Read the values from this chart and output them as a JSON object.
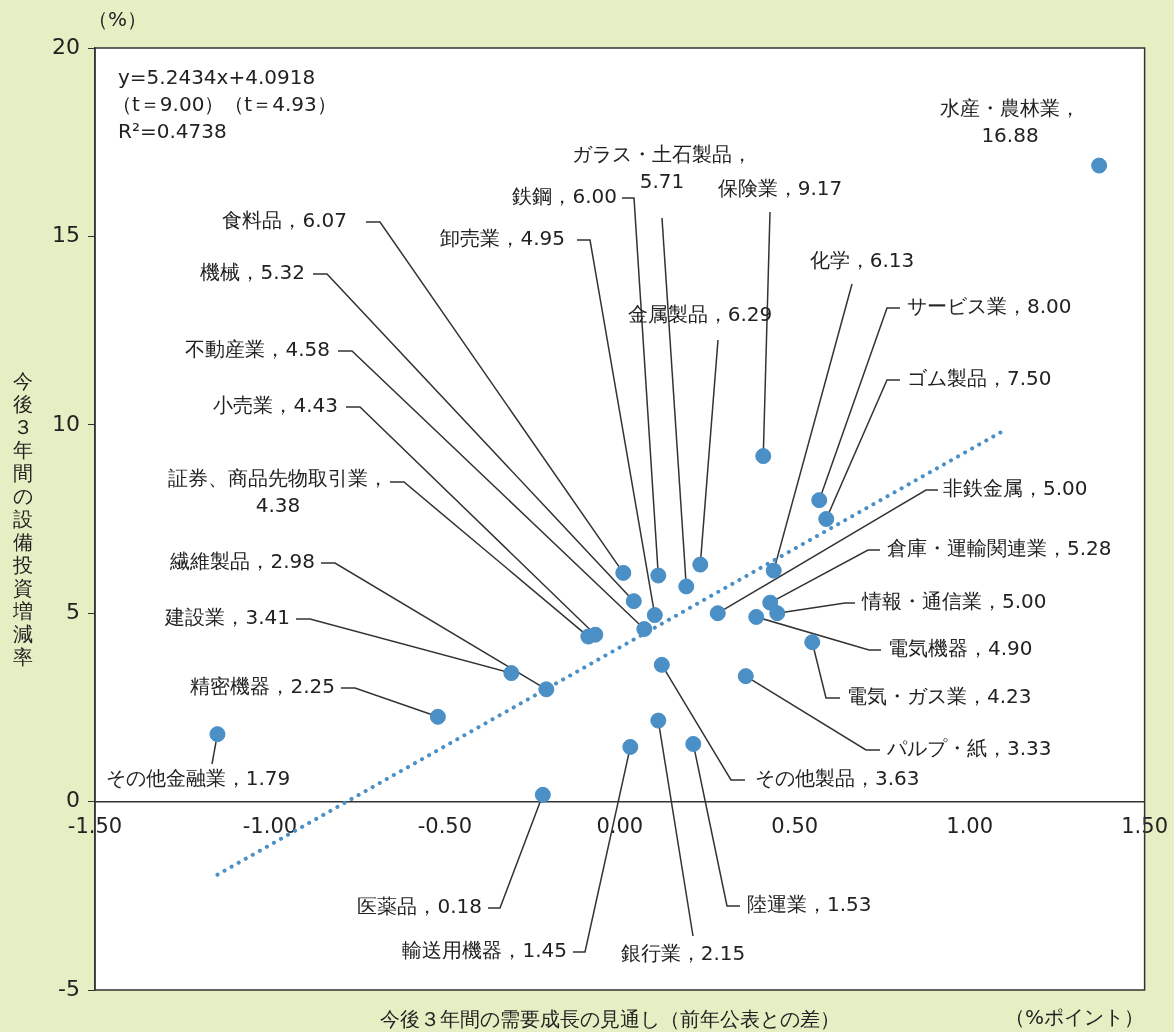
{
  "chart_data": {
    "type": "scatter",
    "xlabel": "今後３年間の需要成長の見通し（前年公表との差）",
    "ylabel": "今後３年間の設備投資増減率",
    "annotations": [
      "y=5.2434x+4.0918",
      "（t＝9.00）（t＝4.93）",
      "R²=0.4738",
      "（%）",
      "（%ポイント）"
    ],
    "xlim": [
      -1.5,
      1.5
    ],
    "xticks": [
      {
        "value": -1.5,
        "label": "-1.50"
      },
      {
        "value": -1,
        "label": "-1.00"
      },
      {
        "value": -0.5,
        "label": "-0.50"
      },
      {
        "value": 0,
        "label": "0.00"
      },
      {
        "value": 0.5,
        "label": "0.50"
      },
      {
        "value": 1,
        "label": "1.00"
      },
      {
        "value": 1.5,
        "label": "1.50"
      }
    ],
    "ylim": [
      -5,
      20
    ],
    "yticks": [
      -5,
      0,
      5,
      10,
      15,
      20
    ],
    "series": [
      {
        "type": "scatter",
        "color": "#4a8fc6",
        "marker": "circle",
        "x": [
          1.37,
          -1.15,
          -0.52,
          -0.31,
          -0.21,
          -0.09,
          -0.07,
          0.07,
          0.04,
          0.01,
          0.11,
          0.1,
          0.19,
          0.23,
          0.41,
          0.44,
          0.57,
          0.59,
          0.28,
          0.43,
          0.45,
          0.39,
          0.55,
          0.36,
          0.12,
          -0.22,
          0.03,
          0.11,
          0.21
        ],
        "values": [
          16.88,
          1.79,
          2.25,
          3.41,
          2.98,
          4.38,
          4.43,
          4.58,
          5.32,
          6.07,
          6.0,
          4.95,
          5.71,
          6.29,
          9.17,
          6.13,
          8.0,
          7.5,
          5.0,
          5.28,
          5.0,
          4.9,
          4.23,
          3.33,
          3.63,
          0.18,
          1.45,
          2.15,
          1.53
        ],
        "value_labels": [
          "水産・農林業，\n16.88",
          "その他金融業，1.79",
          "精密機器，2.25",
          "建設業，3.41",
          "繊維製品，2.98",
          "証券、商品先物取引業，\n4.38",
          "小売業，4.43",
          "不動産業，4.58",
          "機械，5.32",
          "食料品，6.07",
          "鉄鋼，6.00",
          "卸売業，4.95",
          "ガラス・土石製品，\n5.71",
          "金属製品，6.29",
          "保険業，9.17",
          "化学，6.13",
          "サービス業，8.00",
          "ゴム製品，7.50",
          "非鉄金属，5.00",
          "倉庫・運輸関連業，5.28",
          "情報・通信業，5.00",
          "電気機器，4.90",
          "電気・ガス業，4.23",
          "パルプ・紙，3.33",
          "その他製品，3.63",
          "医薬品，0.18",
          "輸送用機器，1.45",
          "銀行業，2.15",
          "陸運業，1.53"
        ]
      },
      {
        "type": "line",
        "color": "#4a8fc6",
        "marker": "none",
        "line_style": "dotted",
        "x": [
          -1.15,
          1.1
        ],
        "values": [
          -1.94,
          9.86
        ]
      }
    ]
  }
}
